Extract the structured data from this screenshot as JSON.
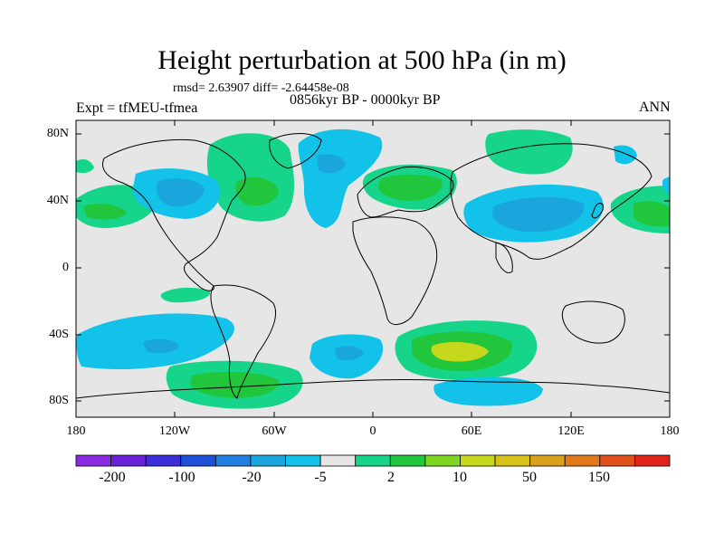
{
  "title": "Height perturbation at 500 hPa (in m)",
  "stats_line": "rmsd= 2.63907 diff= -2.64458e-08",
  "experiment_label": "Expt = tfMEU-tfmea",
  "period_label": "0856kyr BP - 0000kyr BP",
  "season_label": "ANN",
  "lat_ticks": [
    "80N",
    "40N",
    "0",
    "40S",
    "80S"
  ],
  "lon_ticks": [
    "180",
    "120W",
    "60W",
    "0",
    "60E",
    "120E",
    "180"
  ],
  "colorbar": {
    "labels": [
      "-200",
      "-100",
      "-20",
      "-5",
      "2",
      "10",
      "50",
      "150"
    ],
    "colors": [
      "#8a2be2",
      "#6a22d8",
      "#3c2ed8",
      "#1e4fd8",
      "#1f7ee0",
      "#1aa6dc",
      "#12c2e8",
      "#e6e6e6",
      "#16d58a",
      "#21c63c",
      "#7cd622",
      "#c6d81c",
      "#d8c21a",
      "#d8a01c",
      "#e07a1c",
      "#e0501c",
      "#e0241c"
    ]
  },
  "map": {
    "projection": "cylindrical equidistant",
    "lon_range": [
      -180,
      180
    ],
    "lat_range": [
      -90,
      90
    ],
    "background_color": "#e6e6e6"
  }
}
